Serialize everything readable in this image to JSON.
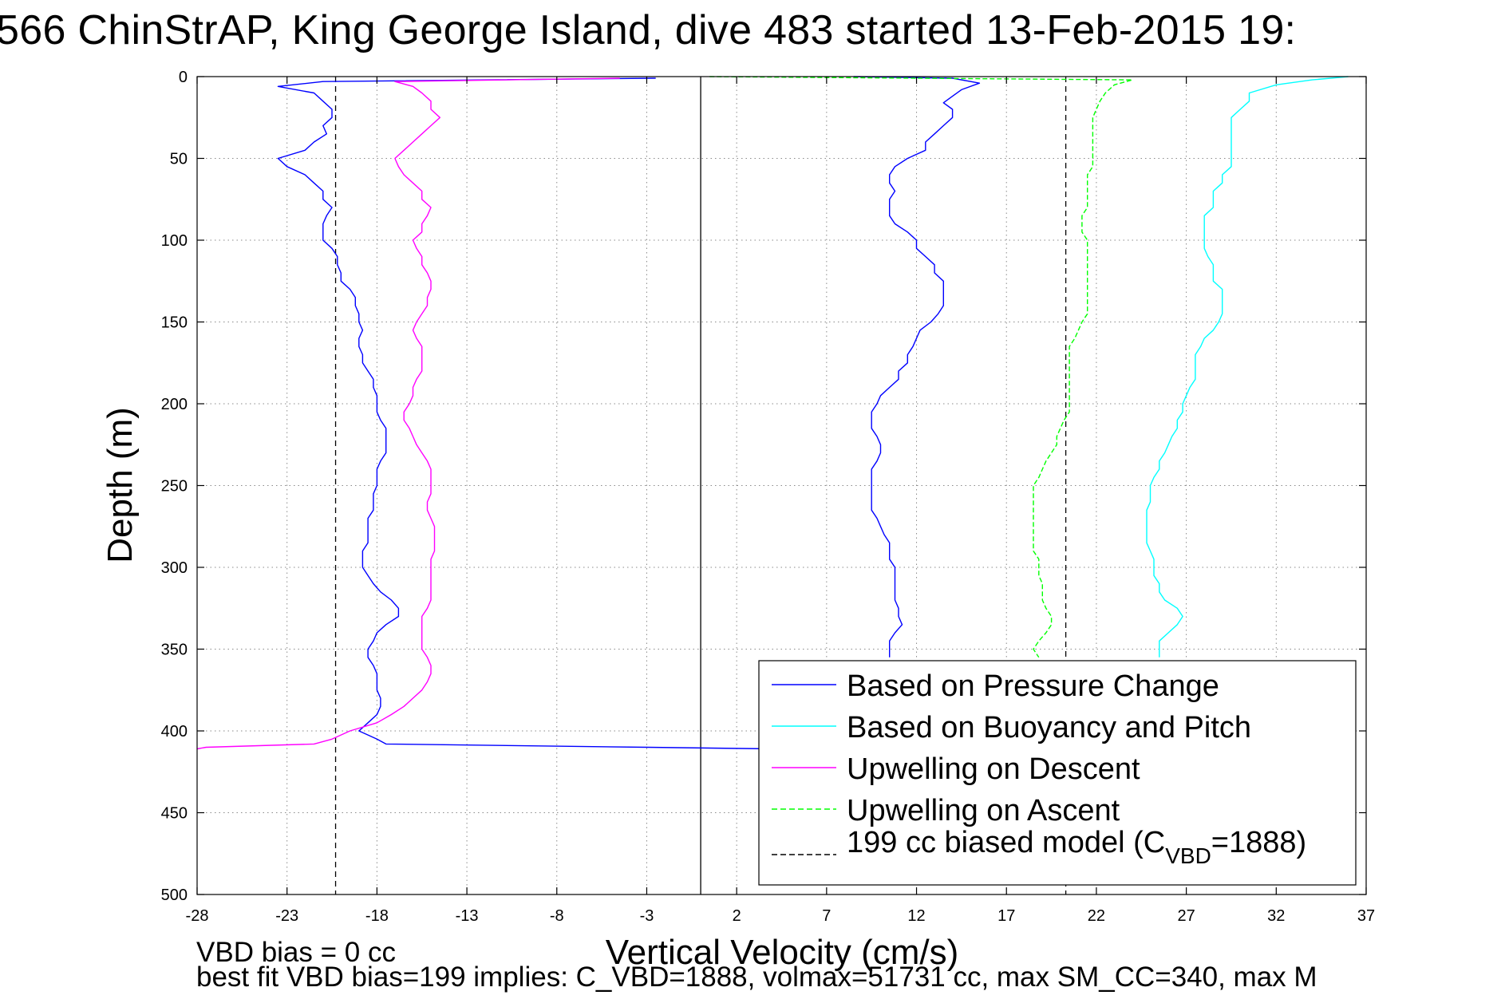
{
  "figure": {
    "title": "566 ChinStrAP, King George Island, dive 483 started 13-Feb-2015 19:",
    "note_bias": "VBD bias = 0 cc",
    "note_fit": "best fit VBD bias=199 implies: C_VBD=1888, volmax=51731 cc, max SM_CC=340, max M"
  },
  "chart_data": {
    "type": "line",
    "xlabel": "Vertical Velocity (cm/s)",
    "ylabel": "Depth (m)",
    "xlim": [
      -28,
      37
    ],
    "ylim": [
      0,
      500
    ],
    "y_reversed": true,
    "xticks": [
      -28,
      -23,
      -18,
      -13,
      -8,
      -3,
      2,
      7,
      12,
      17,
      22,
      27,
      32,
      37
    ],
    "yticks": [
      0,
      50,
      100,
      150,
      200,
      250,
      300,
      350,
      400,
      450,
      500
    ],
    "grid": true,
    "legend_position": "bottom-right",
    "reference_lines": {
      "zero_x": 0,
      "model_x": [
        -20.3,
        20.3
      ]
    },
    "series": [
      {
        "name": "Based on Pressure Change",
        "color": "#0000ff",
        "style": "solid",
        "segments": [
          {
            "depth": [
              1,
              3,
              6,
              10,
              15,
              20,
              25,
              30,
              35,
              40,
              45,
              50,
              55,
              60,
              65,
              70,
              75,
              80,
              85,
              90,
              95,
              100,
              105,
              110,
              115,
              120,
              125,
              130,
              135,
              140,
              145,
              150,
              155,
              160,
              165,
              170,
              175,
              180,
              185,
              190,
              195,
              200,
              205,
              210,
              215,
              220,
              225,
              230,
              235,
              240,
              245,
              250,
              255,
              260,
              265,
              270,
              275,
              280,
              285,
              290,
              295,
              300,
              305,
              310,
              315,
              320,
              325,
              330,
              335,
              340,
              345,
              350,
              355,
              360,
              365,
              370,
              375,
              380,
              385,
              390,
              395,
              400,
              405,
              408,
              410,
              411
            ],
            "velocity": [
              -2.5,
              -21,
              -23.5,
              -21.5,
              -21,
              -20.5,
              -20.5,
              -21,
              -20.8,
              -21.5,
              -22,
              -23.5,
              -23,
              -22,
              -21.5,
              -21,
              -21,
              -20.5,
              -20.8,
              -21,
              -21,
              -21,
              -20.5,
              -20.2,
              -20.2,
              -20,
              -20,
              -19.5,
              -19.2,
              -19.2,
              -19,
              -19,
              -18.8,
              -19,
              -19,
              -18.8,
              -18.8,
              -18.5,
              -18.2,
              -18.2,
              -18,
              -18,
              -18,
              -17.8,
              -17.5,
              -17.5,
              -17.5,
              -17.5,
              -17.8,
              -18,
              -18,
              -18,
              -18.2,
              -18.2,
              -18.2,
              -18.5,
              -18.5,
              -18.5,
              -18.5,
              -18.8,
              -18.8,
              -18.8,
              -18.5,
              -18.2,
              -17.8,
              -17.2,
              -16.8,
              -16.8,
              -17.5,
              -18,
              -18.2,
              -18.5,
              -18.5,
              -18.2,
              -18,
              -18,
              -18,
              -17.8,
              -17.8,
              -18,
              -18.5,
              -19,
              -18,
              -17.5,
              -3,
              4
            ]
          },
          {
            "depth": [
              0,
              1,
              4,
              8,
              12,
              16,
              20,
              25,
              30,
              35,
              40,
              45,
              50,
              55,
              60,
              65,
              70,
              75,
              80,
              85,
              90,
              95,
              100,
              105,
              110,
              115,
              120,
              125,
              130,
              135,
              140,
              145,
              150,
              155,
              160,
              165,
              170,
              175,
              180,
              185,
              190,
              195,
              200,
              205,
              210,
              215,
              220,
              225,
              230,
              235,
              240,
              245,
              250,
              255,
              260,
              265,
              270,
              275,
              280,
              285,
              290,
              295,
              300,
              305,
              310,
              315,
              320,
              325,
              330,
              335,
              340,
              345,
              350,
              355
            ],
            "velocity": [
              8.5,
              14,
              15.5,
              14.5,
              14,
              13.5,
              14,
              14,
              13.5,
              13,
              12.5,
              12.5,
              11.5,
              10.8,
              10.5,
              10.5,
              10.8,
              10.5,
              10.5,
              10.5,
              10.8,
              11.5,
              12,
              12,
              12.5,
              13,
              13,
              13.5,
              13.5,
              13.5,
              13.5,
              13.2,
              12.8,
              12.2,
              12,
              11.8,
              11.5,
              11.5,
              11,
              11,
              10.5,
              10,
              9.8,
              9.5,
              9.5,
              9.5,
              9.8,
              10,
              10,
              9.8,
              9.5,
              9.5,
              9.5,
              9.5,
              9.5,
              9.5,
              9.8,
              10,
              10.2,
              10.5,
              10.5,
              10.5,
              10.8,
              10.8,
              10.8,
              10.8,
              10.8,
              11,
              11,
              11.2,
              10.8,
              10.5,
              10.5,
              10.5
            ]
          }
        ]
      },
      {
        "name": "Based on Buoyancy and Pitch",
        "color": "#00ffff",
        "style": "solid",
        "segments": [
          {
            "depth": [
              0,
              2,
              5,
              10,
              15,
              20,
              25,
              30,
              35,
              40,
              45,
              50,
              55,
              60,
              65,
              70,
              75,
              80,
              85,
              90,
              95,
              100,
              105,
              110,
              115,
              120,
              125,
              130,
              135,
              140,
              145,
              150,
              155,
              160,
              165,
              170,
              175,
              180,
              185,
              190,
              195,
              200,
              205,
              210,
              215,
              220,
              225,
              230,
              235,
              240,
              245,
              250,
              255,
              260,
              265,
              270,
              275,
              280,
              285,
              290,
              295,
              300,
              305,
              310,
              315,
              320,
              325,
              330,
              335,
              340,
              345,
              350,
              355
            ],
            "velocity": [
              36,
              34,
              32,
              30.5,
              30.5,
              30,
              29.5,
              29.5,
              29.5,
              29.5,
              29.5,
              29.5,
              29.5,
              29,
              29,
              28.5,
              28.5,
              28.5,
              28,
              28,
              28,
              28,
              28,
              28.2,
              28.5,
              28.5,
              28.5,
              29,
              29,
              29,
              29,
              28.8,
              28.5,
              28,
              27.8,
              27.5,
              27.5,
              27.5,
              27.5,
              27.2,
              27,
              26.8,
              26.8,
              26.5,
              26.5,
              26.2,
              26,
              25.8,
              25.5,
              25.5,
              25.2,
              25,
              25,
              25,
              24.8,
              24.8,
              24.8,
              24.8,
              24.8,
              25,
              25.2,
              25.2,
              25.2,
              25.5,
              25.5,
              25.8,
              26.5,
              26.8,
              26.5,
              26,
              25.5,
              25.5,
              25.5
            ]
          }
        ]
      },
      {
        "name": "Upwelling on Descent",
        "color": "#ff00ff",
        "style": "solid",
        "segments": [
          {
            "depth": [
              1,
              3,
              6,
              10,
              15,
              20,
              25,
              30,
              35,
              40,
              45,
              50,
              55,
              60,
              65,
              70,
              75,
              80,
              85,
              90,
              95,
              100,
              105,
              110,
              115,
              120,
              125,
              130,
              135,
              140,
              145,
              150,
              155,
              160,
              165,
              170,
              175,
              180,
              185,
              190,
              195,
              200,
              205,
              210,
              215,
              220,
              225,
              230,
              235,
              240,
              245,
              250,
              255,
              260,
              265,
              270,
              275,
              280,
              285,
              290,
              295,
              300,
              305,
              310,
              315,
              320,
              325,
              330,
              335,
              340,
              345,
              350,
              355,
              360,
              365,
              370,
              375,
              380,
              385,
              390,
              395,
              400,
              405,
              408,
              410,
              411
            ],
            "velocity": [
              -4.5,
              -17,
              -16,
              -15.5,
              -15,
              -15,
              -14.5,
              -15,
              -15.5,
              -16,
              -16.5,
              -17,
              -16.8,
              -16.5,
              -16,
              -15.5,
              -15.5,
              -15,
              -15.2,
              -15.5,
              -15.5,
              -16,
              -15.8,
              -15.5,
              -15.5,
              -15.2,
              -15,
              -15,
              -15.2,
              -15.2,
              -15.5,
              -15.8,
              -16,
              -15.8,
              -15.5,
              -15.5,
              -15.5,
              -15.5,
              -15.8,
              -16,
              -16,
              -16.2,
              -16.5,
              -16.5,
              -16.2,
              -16,
              -15.8,
              -15.5,
              -15.2,
              -15,
              -15,
              -15,
              -15,
              -15.2,
              -15.2,
              -15,
              -14.8,
              -14.8,
              -14.8,
              -14.8,
              -15,
              -15,
              -15,
              -15,
              -15,
              -15,
              -15.2,
              -15.5,
              -15.5,
              -15.5,
              -15.5,
              -15.5,
              -15.2,
              -15,
              -15,
              -15.2,
              -15.5,
              -16,
              -16.5,
              -17.2,
              -18,
              -19.5,
              -20.5,
              -21.5,
              -27.5,
              -28
            ]
          }
        ]
      },
      {
        "name": "Upwelling on Ascent",
        "color": "#00ff00",
        "style": "dashed",
        "segments": [
          {
            "depth": [
              0,
              2,
              5,
              10,
              15,
              20,
              25,
              30,
              35,
              40,
              45,
              50,
              55,
              60,
              65,
              70,
              75,
              80,
              85,
              90,
              95,
              100,
              105,
              110,
              115,
              120,
              125,
              130,
              135,
              140,
              145,
              150,
              155,
              160,
              165,
              170,
              175,
              180,
              185,
              190,
              195,
              200,
              205,
              210,
              215,
              220,
              225,
              230,
              235,
              240,
              245,
              250,
              255,
              260,
              265,
              270,
              275,
              280,
              285,
              290,
              295,
              300,
              305,
              310,
              315,
              320,
              325,
              330,
              335,
              340,
              345,
              350,
              355
            ],
            "velocity": [
              0.5,
              24,
              23,
              22.5,
              22.2,
              22,
              21.8,
              21.8,
              21.8,
              21.8,
              21.8,
              21.8,
              21.8,
              21.5,
              21.5,
              21.5,
              21.5,
              21.5,
              21.2,
              21.2,
              21.2,
              21.5,
              21.5,
              21.5,
              21.5,
              21.5,
              21.5,
              21.5,
              21.5,
              21.5,
              21.5,
              21.2,
              21,
              20.8,
              20.5,
              20.5,
              20.5,
              20.5,
              20.5,
              20.5,
              20.5,
              20.5,
              20.5,
              20.2,
              20,
              19.8,
              19.8,
              19.5,
              19.2,
              19,
              18.8,
              18.5,
              18.5,
              18.5,
              18.5,
              18.5,
              18.5,
              18.5,
              18.5,
              18.5,
              18.8,
              18.8,
              18.8,
              19,
              19,
              19,
              19.2,
              19.5,
              19.5,
              19.2,
              18.8,
              18.5,
              18.8
            ]
          }
        ]
      },
      {
        "name": "199 cc biased model (C_VBD=1888)",
        "color": "#000000",
        "style": "dashed"
      }
    ]
  },
  "legend": {
    "entries": [
      {
        "text": "Based on Pressure Change",
        "color": "#0000ff",
        "style": "solid"
      },
      {
        "text": "Based on Buoyancy and Pitch",
        "color": "#00ffff",
        "style": "solid"
      },
      {
        "text": "Upwelling on Descent",
        "color": "#ff00ff",
        "style": "solid"
      },
      {
        "text": "Upwelling on Ascent",
        "color": "#00ff00",
        "style": "dashed"
      },
      {
        "text_main": "199 cc biased model (C",
        "text_sub": "VBD",
        "text_tail": "=1888)",
        "color": "#000000",
        "style": "dashed"
      }
    ]
  }
}
